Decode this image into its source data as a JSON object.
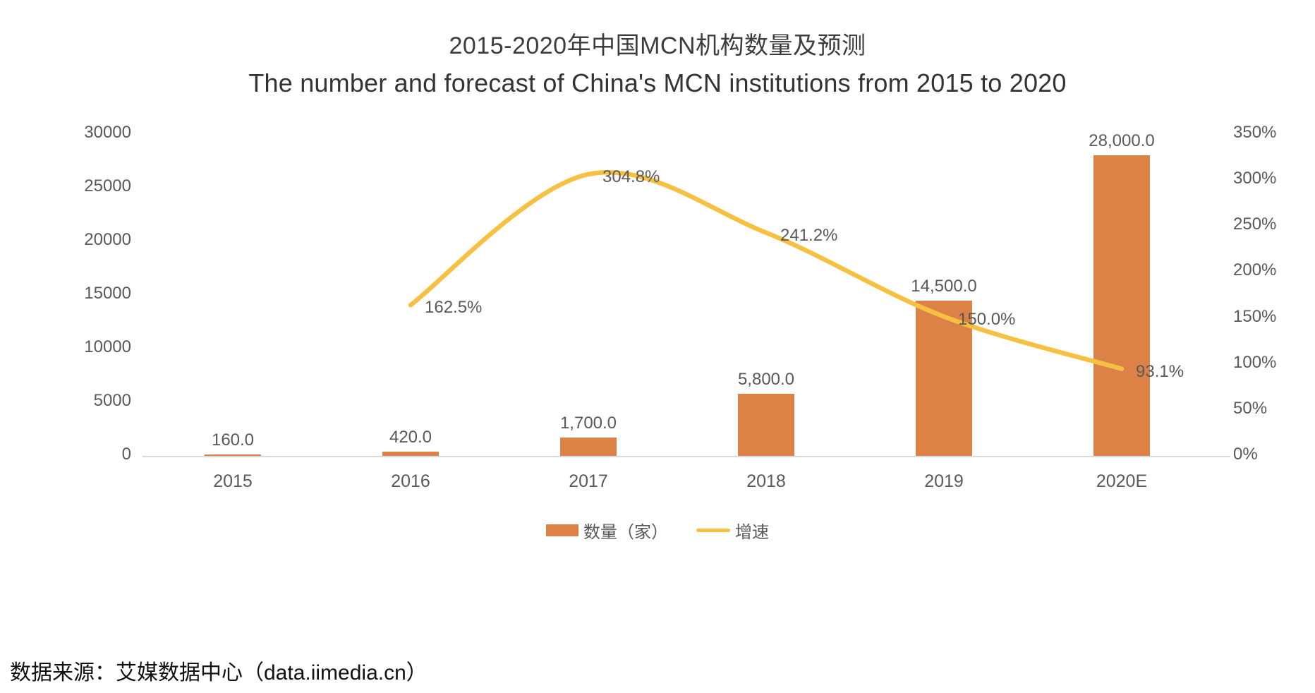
{
  "title": "2015-2020年中国MCN机构数量及预测",
  "subtitle": "The number and forecast of China's MCN institutions from 2015 to 2020",
  "source": "数据来源：艾媒数据中心（data.iimedia.cn）",
  "legend": {
    "bar_label": "数量（家）",
    "line_label": "增速"
  },
  "colors": {
    "bar": "#DC8246",
    "line": "#F6C142",
    "label_text": "#595959",
    "axis_line": "#D9D9D9"
  },
  "chart_data": {
    "type": "bar",
    "subtype": "combo-bar-line",
    "categories": [
      "2015",
      "2016",
      "2017",
      "2018",
      "2019",
      "2020E"
    ],
    "series": [
      {
        "name": "数量（家）",
        "type": "bar",
        "axis": "left",
        "values": [
          160,
          420,
          1700,
          5800,
          14500,
          28000
        ],
        "labels": [
          "160.0",
          "420.0",
          "1,700.0",
          "5,800.0",
          "14,500.0",
          "28,000.0"
        ]
      },
      {
        "name": "增速",
        "type": "line",
        "axis": "right",
        "values": [
          null,
          162.5,
          304.8,
          241.2,
          150.0,
          93.1
        ],
        "labels": [
          null,
          "162.5%",
          "304.8%",
          "241.2%",
          "150.0%",
          "93.1%"
        ]
      }
    ],
    "left_axis": {
      "min": 0,
      "max": 30000,
      "step": 5000,
      "ticks": [
        "30000",
        "25000",
        "20000",
        "15000",
        "10000",
        "5000",
        "0"
      ]
    },
    "right_axis": {
      "min": 0,
      "max": 350,
      "step": 50,
      "ticks": [
        "350%",
        "300%",
        "250%",
        "200%",
        "150%",
        "100%",
        "50%",
        "0%"
      ]
    },
    "grid": false,
    "legend_position": "bottom",
    "title": "2015-2020年中国MCN机构数量及预测",
    "subtitle": "The number and forecast of China's MCN institutions from 2015 to 2020"
  }
}
